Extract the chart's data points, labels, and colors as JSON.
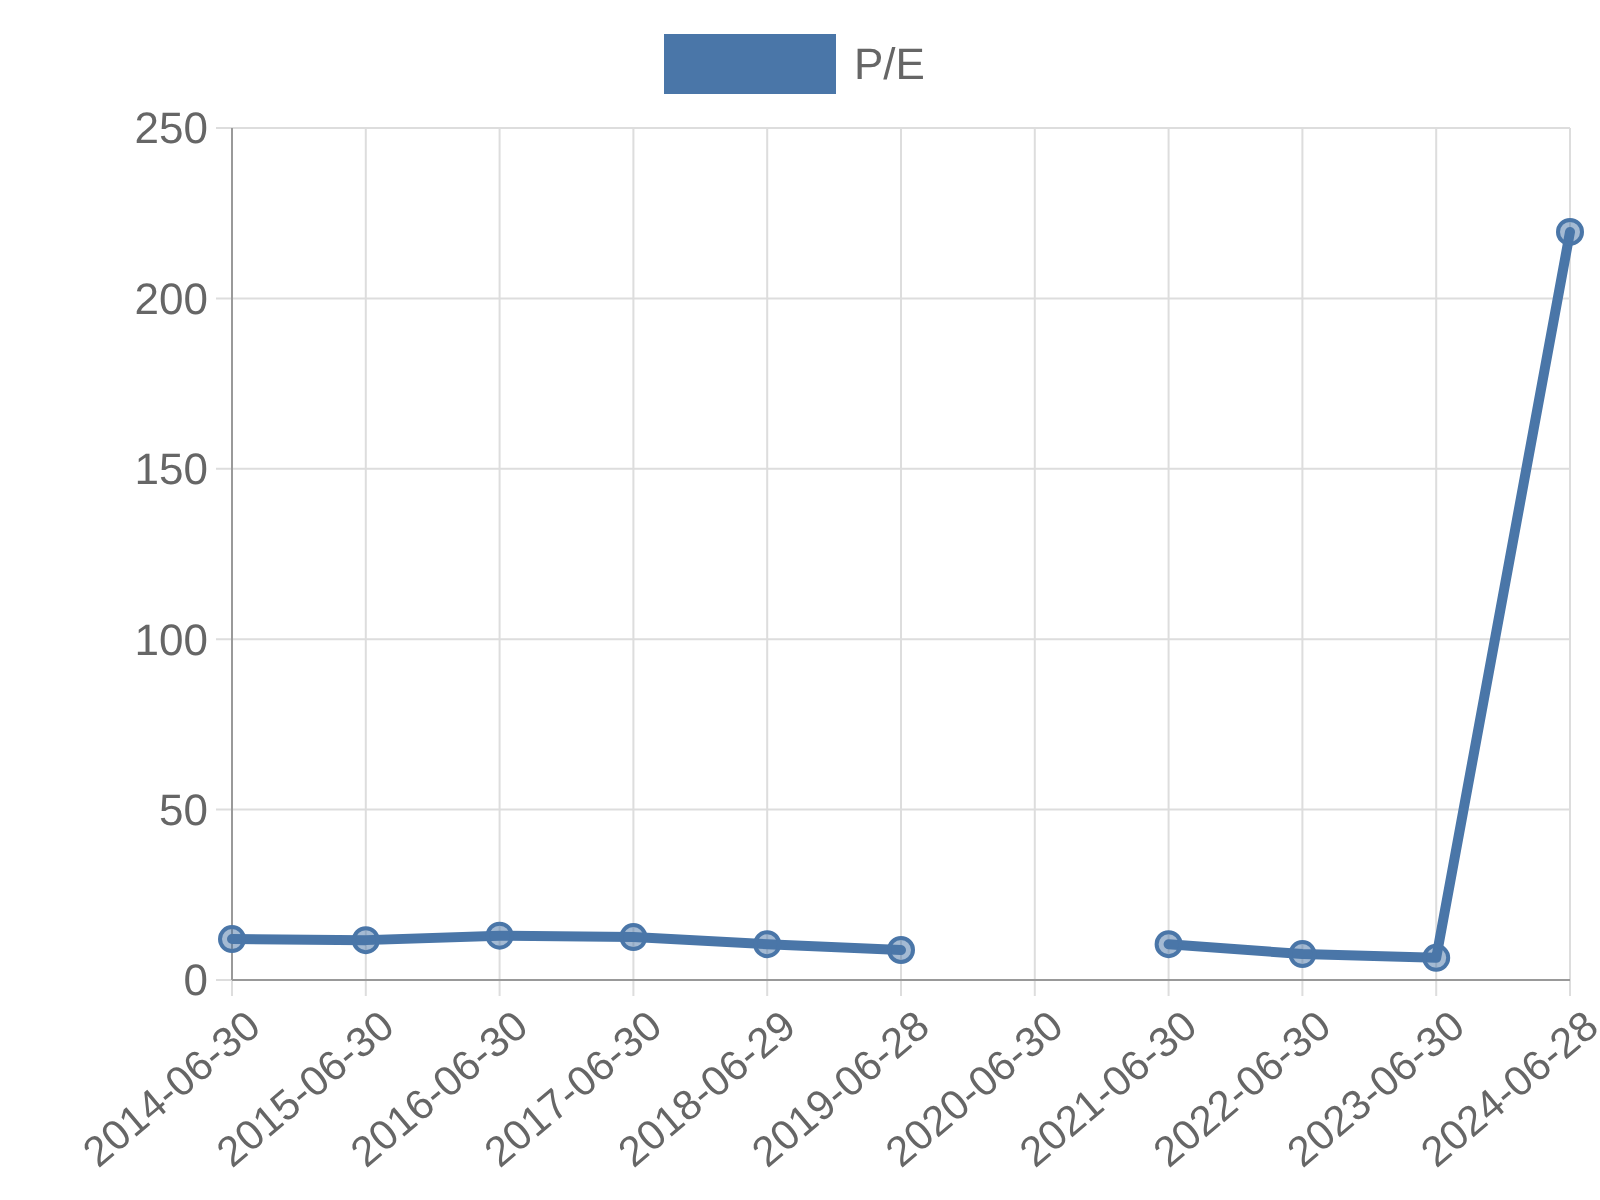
{
  "chart_data": {
    "type": "line",
    "categories": [
      "2014-06-30",
      "2015-06-30",
      "2016-06-30",
      "2017-06-30",
      "2018-06-29",
      "2019-06-28",
      "2020-06-30",
      "2021-06-30",
      "2022-06-30",
      "2023-06-30",
      "2024-06-28"
    ],
    "series": [
      {
        "name": "P/E",
        "color": "#4a76a8",
        "values": [
          12,
          11.7,
          13,
          12.6,
          10.5,
          8.8,
          null,
          10.5,
          7.6,
          6.5,
          219.5
        ]
      }
    ],
    "ylim": [
      0,
      250
    ],
    "yticks": [
      0,
      50,
      100,
      150,
      200,
      250
    ],
    "grid": true,
    "legend": "top",
    "marker": "circle",
    "line_style": "solid"
  }
}
